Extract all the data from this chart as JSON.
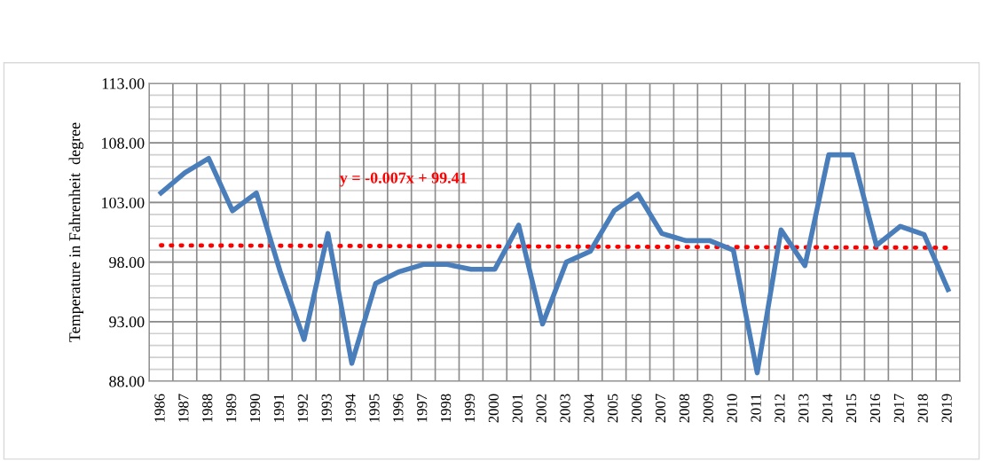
{
  "chart_data": {
    "type": "line",
    "ylabel": "Temperature in Fahrenheit  degree",
    "categories": [
      "1986",
      "1987",
      "1988",
      "1989",
      "1990",
      "1991",
      "1992",
      "1993",
      "1994",
      "1995",
      "1996",
      "1997",
      "1998",
      "1999",
      "2000",
      "2001",
      "2002",
      "2003",
      "2004",
      "2005",
      "2006",
      "2007",
      "2008",
      "2009",
      "2010",
      "2011",
      "2012",
      "2013",
      "2014",
      "2015",
      "2016",
      "2017",
      "2018",
      "2019"
    ],
    "series": [
      {
        "color": "#4a7ebb",
        "line_style": "solid",
        "values": [
          103.8,
          105.5,
          106.7,
          102.3,
          103.8,
          97.2,
          91.5,
          100.4,
          89.5,
          96.2,
          97.2,
          97.8,
          97.8,
          97.4,
          97.4,
          101.1,
          92.8,
          98.0,
          98.9,
          102.3,
          103.7,
          100.4,
          99.8,
          99.8,
          99.0,
          88.7,
          100.7,
          97.7,
          107.0,
          107.0,
          99.4,
          101.0,
          100.3,
          95.7
        ]
      },
      {
        "color": "#ff0000",
        "line_style": "dotted",
        "values": [
          99.4,
          null,
          null,
          null,
          null,
          null,
          null,
          null,
          null,
          null,
          null,
          null,
          null,
          null,
          null,
          null,
          null,
          null,
          null,
          null,
          null,
          null,
          null,
          null,
          null,
          null,
          null,
          null,
          null,
          null,
          null,
          null,
          null,
          99.2
        ]
      }
    ],
    "annotations": [
      "y = -0.007x + 99.41"
    ],
    "ylim": [
      88,
      113
    ],
    "yticks": [
      {
        "value": 88,
        "label": "88.00"
      },
      {
        "value": 89,
        "label": null
      },
      {
        "value": 90,
        "label": null
      },
      {
        "value": 91,
        "label": null
      },
      {
        "value": 92,
        "label": null
      },
      {
        "value": 93,
        "label": "93.00"
      },
      {
        "value": 94,
        "label": null
      },
      {
        "value": 95,
        "label": null
      },
      {
        "value": 96,
        "label": null
      },
      {
        "value": 97,
        "label": null
      },
      {
        "value": 98,
        "label": "98.00"
      },
      {
        "value": 99,
        "label": null
      },
      {
        "value": 100,
        "label": null
      },
      {
        "value": 101,
        "label": null
      },
      {
        "value": 102,
        "label": null
      },
      {
        "value": 103,
        "label": "103.00"
      },
      {
        "value": 104,
        "label": null
      },
      {
        "value": 105,
        "label": null
      },
      {
        "value": 106,
        "label": null
      },
      {
        "value": 107,
        "label": null
      },
      {
        "value": 108,
        "label": "108.00"
      },
      {
        "value": 109,
        "label": null
      },
      {
        "value": 110,
        "label": null
      },
      {
        "value": 111,
        "label": null
      },
      {
        "value": 112,
        "label": null
      },
      {
        "value": 113,
        "label": "113.00"
      }
    ],
    "grid": true,
    "marker": "none",
    "legend": false
  }
}
